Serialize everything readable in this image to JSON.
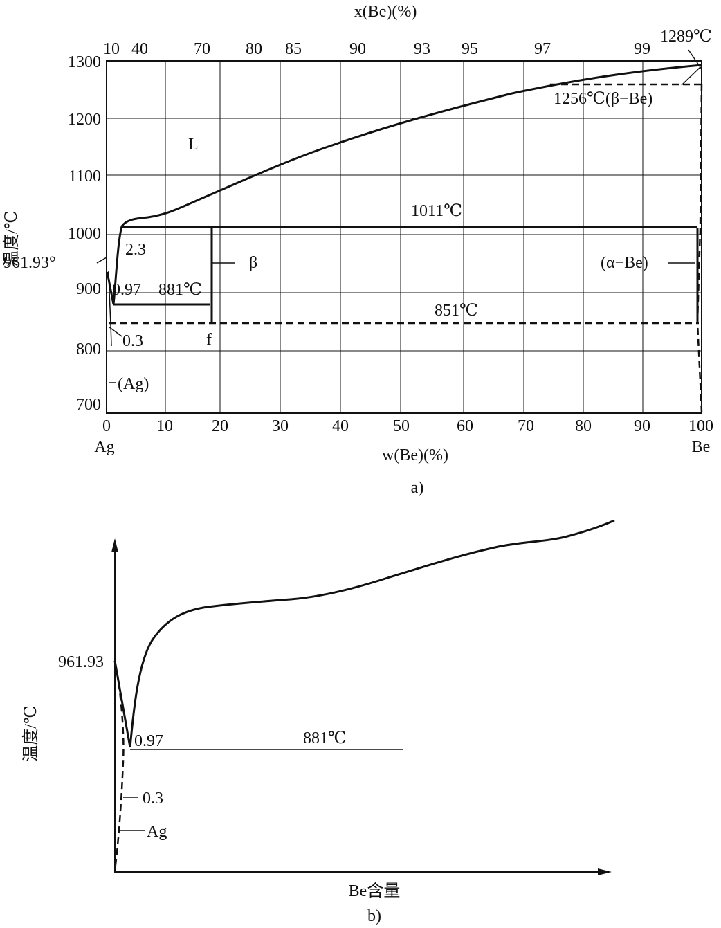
{
  "diagram_a": {
    "caption": "a)",
    "top_axis_title": "x(Be)(%)",
    "top_ticks": [
      "10",
      "40",
      "70",
      "80",
      "85",
      "90",
      "93",
      "95",
      "97",
      "99"
    ],
    "y_title": "温度/℃",
    "y_ticks": [
      "1300",
      "1200",
      "1100",
      "1000",
      "900",
      "800",
      "700"
    ],
    "x_title": "w(Be)(%)",
    "x_ticks": [
      "0",
      "10",
      "20",
      "30",
      "40",
      "50",
      "60",
      "70",
      "80",
      "90",
      "100"
    ],
    "left_element": "Ag",
    "right_element": "Be",
    "labels": {
      "liquid": "L",
      "mp_be": "1289℃",
      "beta_be": "1256℃(β−Be)",
      "eutectic_1011": "1011℃",
      "comp_2_3": "2.3",
      "mp_ag": "961.93°",
      "beta": "β",
      "alpha_be": "(α−Be)",
      "comp_0_97": "0.97",
      "eutectic_881": "881℃",
      "eutectoid_851": "851℃",
      "comp_0_3": "0.3",
      "f": "f",
      "ag_phase": "(Ag)"
    }
  },
  "diagram_b": {
    "caption": "b)",
    "y_title": "温度/℃",
    "x_title": "Be含量",
    "labels": {
      "mp_ag": "961.93",
      "comp_0_97": "0.97",
      "eutectic_881": "881℃",
      "comp_0_3": "0.3",
      "ag": "Ag"
    }
  }
}
